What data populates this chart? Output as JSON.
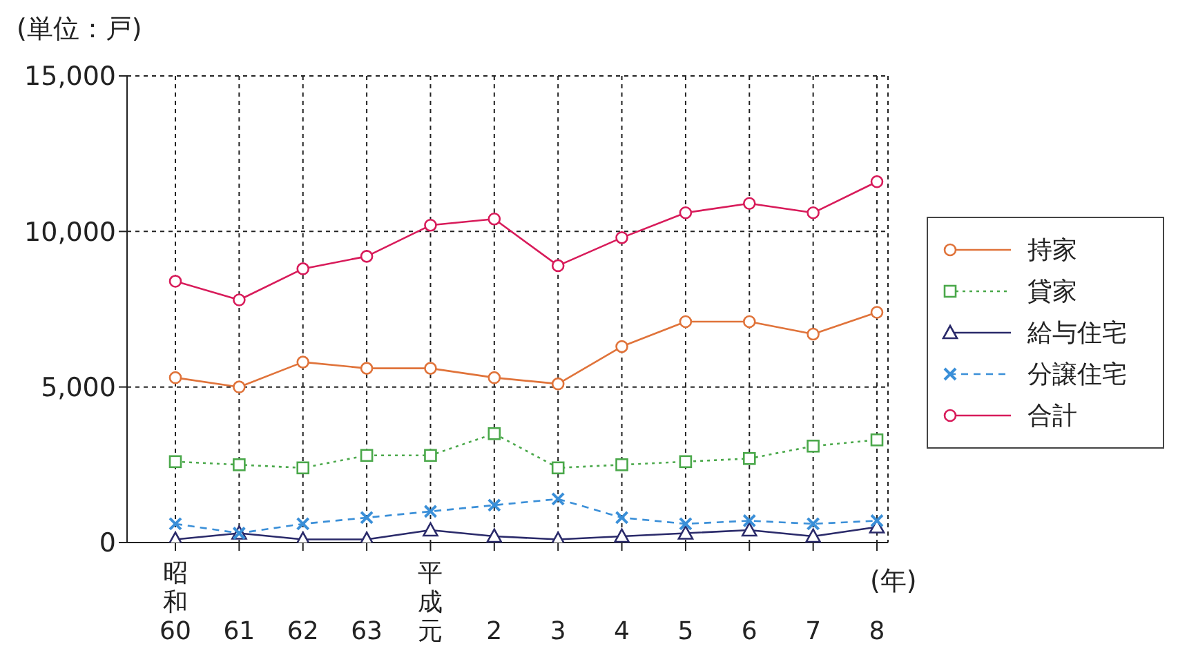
{
  "chart_data": {
    "type": "line",
    "ylabel": "(単位：戸)",
    "xlabel": "(年)",
    "categories": [
      "昭和60",
      "61",
      "62",
      "63",
      "平成元",
      "2",
      "3",
      "4",
      "5",
      "6",
      "7",
      "8"
    ],
    "ylim": [
      0,
      15000
    ],
    "yticks": [
      {
        "value": 0,
        "label": "0"
      },
      {
        "value": 5000,
        "label": "5,000"
      },
      {
        "value": 10000,
        "label": "10,000"
      },
      {
        "value": 15000,
        "label": "15,000"
      }
    ],
    "grid": true,
    "legend": "right",
    "series": [
      {
        "name": "持家",
        "color": "#e0733a",
        "marker": "circle",
        "line_style": "solid",
        "values": [
          5300,
          5000,
          5800,
          5600,
          5600,
          5300,
          5100,
          6300,
          7100,
          7100,
          6700,
          7400
        ]
      },
      {
        "name": "貸家",
        "color": "#4aa84a",
        "marker": "square",
        "line_style": "dotted",
        "values": [
          2600,
          2500,
          2400,
          2800,
          2800,
          3500,
          2400,
          2500,
          2600,
          2700,
          3100,
          3300
        ]
      },
      {
        "name": "給与住宅",
        "color": "#2a2a6a",
        "marker": "triangle",
        "line_style": "solid",
        "values": [
          100,
          300,
          100,
          100,
          400,
          200,
          100,
          200,
          300,
          400,
          200,
          500
        ]
      },
      {
        "name": "分譲住宅",
        "color": "#3a8fd8",
        "marker": "cross",
        "line_style": "dashed",
        "values": [
          600,
          300,
          600,
          800,
          1000,
          1200,
          1400,
          800,
          600,
          700,
          600,
          700
        ]
      },
      {
        "name": "合計",
        "color": "#d81b5a",
        "marker": "circle",
        "line_style": "solid",
        "values": [
          8400,
          7800,
          8800,
          9200,
          10200,
          10400,
          8900,
          9800,
          10600,
          10900,
          10600,
          11600
        ]
      }
    ]
  }
}
